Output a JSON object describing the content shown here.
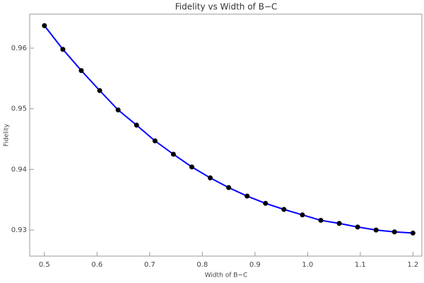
{
  "chart_data": {
    "type": "line",
    "title": "Fidelity vs Width of B−C",
    "x_label": "Width of B−C",
    "y_label": "Fidelity",
    "x": [
      0.5,
      0.535,
      0.57,
      0.605,
      0.64,
      0.675,
      0.71,
      0.745,
      0.78,
      0.815,
      0.85,
      0.885,
      0.92,
      0.955,
      0.99,
      1.025,
      1.06,
      1.095,
      1.13,
      1.165,
      1.2
    ],
    "series": [
      {
        "name": "Fidelity",
        "color": "#0000ff",
        "marker_color": "#000000",
        "values": [
          0.9637,
          0.9598,
          0.9563,
          0.953,
          0.9498,
          0.9473,
          0.9447,
          0.9425,
          0.9404,
          0.9386,
          0.937,
          0.9356,
          0.9344,
          0.9334,
          0.9325,
          0.9316,
          0.9311,
          0.9305,
          0.93,
          0.9297,
          0.9295
        ]
      }
    ],
    "xlim": [
      0.472,
      1.217
    ],
    "ylim": [
      0.9257,
      0.9656
    ],
    "xticks": [
      0.5,
      0.6,
      0.7,
      0.8,
      0.9,
      {
        "value": 1,
        "label": "1.0"
      },
      1.1,
      1.2
    ],
    "yticks": [
      0.93,
      0.94,
      0.95,
      0.96
    ]
  }
}
